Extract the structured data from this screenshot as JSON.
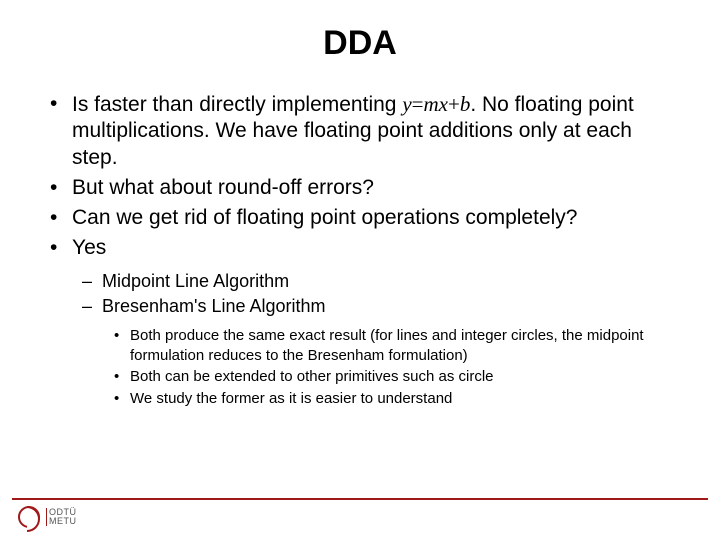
{
  "title": {
    "text": "DDA",
    "fontsize": 34
  },
  "bullets": {
    "fontsize_lvl1": 21,
    "fontsize_lvl2": 18,
    "fontsize_lvl3": 15,
    "items": [
      {
        "pre": "Is faster than directly implementing ",
        "formula": {
          "y": "y",
          "eq": "=",
          "m": "m",
          "x": "x",
          "plus": "+",
          "b": "b"
        },
        "post": ". No floating point multiplications. We have floating point additions only at each step."
      },
      {
        "text": "But what about round-off errors?"
      },
      {
        "text": "Can we get rid of floating point operations completely?"
      },
      {
        "text": "Yes",
        "sub": [
          {
            "text": "Midpoint Line Algorithm"
          },
          {
            "text": "Bresenham's Line Algorithm",
            "sub": [
              {
                "text": "Both produce the same exact result (for lines and integer circles, the midpoint formulation reduces to the Bresenham formulation)"
              },
              {
                "text": "Both can be extended to other primitives such as circle"
              },
              {
                "text": "We study the former as it is easier to understand"
              }
            ]
          }
        ]
      }
    ]
  },
  "footer": {
    "line_color": "#a01818",
    "logo": {
      "top": "ODTÜ",
      "bottom": "METU",
      "fontsize": 9,
      "text_color": "#555555"
    }
  },
  "colors": {
    "background": "#ffffff",
    "text": "#000000"
  }
}
